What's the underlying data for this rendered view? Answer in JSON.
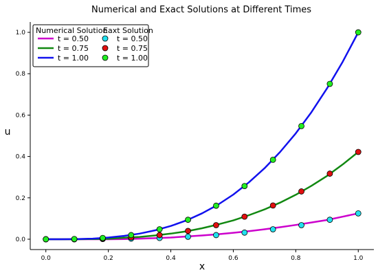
{
  "chart_data": {
    "type": "line",
    "title": "Numerical and Exact Solutions at Different Times",
    "xlabel": "x",
    "ylabel": "u",
    "xlim": [
      -0.05,
      1.05
    ],
    "ylim": [
      -0.05,
      1.05
    ],
    "xticks": [
      0.0,
      0.2,
      0.4,
      0.6,
      0.8,
      1.0
    ],
    "xtick_labels": [
      "0.0",
      "0.2",
      "0.4",
      "0.6",
      "0.8",
      "1.0"
    ],
    "yticks": [
      0.0,
      0.2,
      0.4,
      0.6,
      0.8,
      1.0
    ],
    "ytick_labels": [
      "0.0",
      "0.2",
      "0.4",
      "0.6",
      "0.8",
      "1.0"
    ],
    "grid": false,
    "legend_position": "top-left",
    "legend_headers": [
      "Numerical Solution",
      "Eaxt Solution"
    ],
    "line_series": [
      {
        "name": "t = 0.50",
        "color": "#cc00cc",
        "x": [
          0.0,
          0.05,
          0.1,
          0.15,
          0.2,
          0.25,
          0.3,
          0.35,
          0.4,
          0.45,
          0.5,
          0.55,
          0.6,
          0.65,
          0.7,
          0.75,
          0.8,
          0.85,
          0.9,
          0.95,
          1.0
        ],
        "y": [
          0.0,
          0.0,
          0.0,
          0.0,
          0.0,
          0.001,
          0.003,
          0.005,
          0.008,
          0.013,
          0.018,
          0.024,
          0.031,
          0.039,
          0.048,
          0.058,
          0.069,
          0.081,
          0.093,
          0.109,
          0.125
        ]
      },
      {
        "name": "t = 0.75",
        "color": "#118811",
        "x": [
          0.0,
          0.05,
          0.1,
          0.15,
          0.2,
          0.25,
          0.3,
          0.35,
          0.4,
          0.45,
          0.5,
          0.55,
          0.6,
          0.65,
          0.7,
          0.75,
          0.8,
          0.85,
          0.9,
          0.95,
          1.0
        ],
        "y": [
          0.0,
          0.0,
          0.0,
          0.001,
          0.002,
          0.007,
          0.011,
          0.018,
          0.027,
          0.038,
          0.053,
          0.071,
          0.091,
          0.116,
          0.144,
          0.177,
          0.215,
          0.258,
          0.306,
          0.361,
          0.422
        ]
      },
      {
        "name": "t = 1.00",
        "color": "#1111ee",
        "x": [
          0.0,
          0.05,
          0.1,
          0.15,
          0.2,
          0.25,
          0.3,
          0.35,
          0.4,
          0.45,
          0.5,
          0.55,
          0.6,
          0.65,
          0.7,
          0.75,
          0.8,
          0.85,
          0.9,
          0.95,
          1.0
        ],
        "y": [
          0.0,
          0.0,
          0.001,
          0.003,
          0.008,
          0.016,
          0.027,
          0.043,
          0.064,
          0.091,
          0.125,
          0.166,
          0.216,
          0.275,
          0.343,
          0.422,
          0.512,
          0.614,
          0.729,
          0.857,
          1.0
        ]
      }
    ],
    "marker_series": [
      {
        "name": "t = 0.50",
        "color": "#22e0ee",
        "x": [
          0.0,
          0.091,
          0.182,
          0.273,
          0.364,
          0.455,
          0.545,
          0.636,
          0.727,
          0.818,
          0.909,
          1.0
        ],
        "y": [
          0.0,
          0.0,
          0.001,
          0.003,
          0.006,
          0.012,
          0.02,
          0.032,
          0.048,
          0.068,
          0.094,
          0.125
        ]
      },
      {
        "name": "t = 0.75",
        "color": "#e01010",
        "x": [
          0.0,
          0.091,
          0.182,
          0.273,
          0.364,
          0.455,
          0.545,
          0.636,
          0.727,
          0.818,
          0.909,
          1.0
        ],
        "y": [
          0.0,
          0.0,
          0.003,
          0.009,
          0.02,
          0.04,
          0.068,
          0.109,
          0.163,
          0.231,
          0.317,
          0.422
        ]
      },
      {
        "name": "t = 1.00",
        "color": "#22ee22",
        "x": [
          0.0,
          0.091,
          0.182,
          0.273,
          0.364,
          0.455,
          0.545,
          0.636,
          0.727,
          0.818,
          0.909,
          1.0
        ],
        "y": [
          0.0,
          0.001,
          0.006,
          0.02,
          0.048,
          0.094,
          0.162,
          0.257,
          0.384,
          0.547,
          0.751,
          1.0
        ]
      }
    ]
  }
}
